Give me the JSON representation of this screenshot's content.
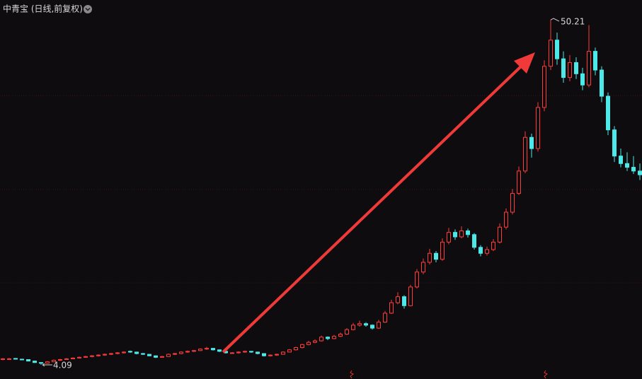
{
  "chart_data": {
    "type": "candlestick",
    "title": "中青宝 (日线,前复权)",
    "ylim": [
      2.2,
      52.86
    ],
    "up_color": "#ff3b3b",
    "down_color": "#4de8e8",
    "candles": [
      [
        4.8,
        5.0,
        4.7,
        4.9
      ],
      [
        4.9,
        5.0,
        4.8,
        4.9
      ],
      [
        4.95,
        5.0,
        4.8,
        4.85
      ],
      [
        4.85,
        4.9,
        4.7,
        4.8
      ],
      [
        4.8,
        4.85,
        4.55,
        4.6
      ],
      [
        4.6,
        4.65,
        4.35,
        4.4
      ],
      [
        4.4,
        4.45,
        4.09,
        4.3
      ],
      [
        4.3,
        4.6,
        4.25,
        4.5
      ],
      [
        4.5,
        4.8,
        4.45,
        4.7
      ],
      [
        4.7,
        4.9,
        4.6,
        4.8
      ],
      [
        4.8,
        5.0,
        4.75,
        4.9
      ],
      [
        4.9,
        5.1,
        4.85,
        5.0
      ],
      [
        5.0,
        5.2,
        4.95,
        5.1
      ],
      [
        5.1,
        5.3,
        5.05,
        5.2
      ],
      [
        5.2,
        5.4,
        5.1,
        5.3
      ],
      [
        5.3,
        5.5,
        5.2,
        5.4
      ],
      [
        5.4,
        5.6,
        5.3,
        5.5
      ],
      [
        5.5,
        5.7,
        5.4,
        5.6
      ],
      [
        5.6,
        5.8,
        5.5,
        5.7
      ],
      [
        5.7,
        5.9,
        5.6,
        5.8
      ],
      [
        5.9,
        6.0,
        5.7,
        5.8
      ],
      [
        5.8,
        5.85,
        5.5,
        5.6
      ],
      [
        5.6,
        5.7,
        5.4,
        5.5
      ],
      [
        5.5,
        5.55,
        5.25,
        5.3
      ],
      [
        5.3,
        5.35,
        5.0,
        5.1
      ],
      [
        5.1,
        5.3,
        5.05,
        5.2
      ],
      [
        5.2,
        5.6,
        5.15,
        5.5
      ],
      [
        5.5,
        5.7,
        5.4,
        5.6
      ],
      [
        5.6,
        5.9,
        5.5,
        5.8
      ],
      [
        5.8,
        6.0,
        5.7,
        5.9
      ],
      [
        5.9,
        6.1,
        5.8,
        6.0
      ],
      [
        6.0,
        6.3,
        5.95,
        6.2
      ],
      [
        6.2,
        6.5,
        6.1,
        6.3
      ],
      [
        6.3,
        6.35,
        6.0,
        6.1
      ],
      [
        6.1,
        6.15,
        5.8,
        5.9
      ],
      [
        5.9,
        6.0,
        5.6,
        5.7
      ],
      [
        5.7,
        5.8,
        5.6,
        5.7
      ],
      [
        5.7,
        5.9,
        5.6,
        5.8
      ],
      [
        5.8,
        6.0,
        5.7,
        5.9
      ],
      [
        5.9,
        5.95,
        5.7,
        5.8
      ],
      [
        5.8,
        5.85,
        5.5,
        5.6
      ],
      [
        5.6,
        5.65,
        5.2,
        5.3
      ],
      [
        5.3,
        5.5,
        5.2,
        5.4
      ],
      [
        5.4,
        5.6,
        5.3,
        5.5
      ],
      [
        5.5,
        5.9,
        5.45,
        5.8
      ],
      [
        5.8,
        6.2,
        5.75,
        6.1
      ],
      [
        6.1,
        6.5,
        6.0,
        6.4
      ],
      [
        6.4,
        6.9,
        6.3,
        6.8
      ],
      [
        6.8,
        7.3,
        6.7,
        7.1
      ],
      [
        7.1,
        7.5,
        7.0,
        7.3
      ],
      [
        7.3,
        8.0,
        7.2,
        7.8
      ],
      [
        7.8,
        7.9,
        7.4,
        7.6
      ],
      [
        7.6,
        8.1,
        7.5,
        7.9
      ],
      [
        7.9,
        8.4,
        7.8,
        8.2
      ],
      [
        8.2,
        9.0,
        8.1,
        8.8
      ],
      [
        8.8,
        9.7,
        8.7,
        9.4
      ],
      [
        9.4,
        10.0,
        9.2,
        9.6
      ],
      [
        9.6,
        9.8,
        9.2,
        9.4
      ],
      [
        9.4,
        9.5,
        8.8,
        9.0
      ],
      [
        9.0,
        10.1,
        8.9,
        9.8
      ],
      [
        9.8,
        11.3,
        9.7,
        11.0
      ],
      [
        11.0,
        12.8,
        10.9,
        12.4
      ],
      [
        12.4,
        13.8,
        12.2,
        13.2
      ],
      [
        13.2,
        13.4,
        11.6,
        12.0
      ],
      [
        12.0,
        14.8,
        11.9,
        14.5
      ],
      [
        14.5,
        16.9,
        14.3,
        16.5
      ],
      [
        16.5,
        18.3,
        16.2,
        17.8
      ],
      [
        17.8,
        19.6,
        17.5,
        19.0
      ],
      [
        19.0,
        19.3,
        17.8,
        18.2
      ],
      [
        18.2,
        21.0,
        18.0,
        20.5
      ],
      [
        20.5,
        22.4,
        20.2,
        21.8
      ],
      [
        21.8,
        22.2,
        20.8,
        21.2
      ],
      [
        21.2,
        22.6,
        21.0,
        22.0
      ],
      [
        22.0,
        22.3,
        21.1,
        21.5
      ],
      [
        21.5,
        21.7,
        19.5,
        19.8
      ],
      [
        19.8,
        20.1,
        18.6,
        19.0
      ],
      [
        19.0,
        19.9,
        18.7,
        19.5
      ],
      [
        19.5,
        20.9,
        19.3,
        20.5
      ],
      [
        20.5,
        23.0,
        20.3,
        22.5
      ],
      [
        22.5,
        25.0,
        22.2,
        24.5
      ],
      [
        24.5,
        27.6,
        24.2,
        27.0
      ],
      [
        27.0,
        30.6,
        26.8,
        30.0
      ],
      [
        30.0,
        35.3,
        29.7,
        34.5
      ],
      [
        34.5,
        35.0,
        31.8,
        33.0
      ],
      [
        33.0,
        39.2,
        32.6,
        38.5
      ],
      [
        38.5,
        44.8,
        38.0,
        44.0
      ],
      [
        44.0,
        50.21,
        43.5,
        47.5
      ],
      [
        47.5,
        48.5,
        44.2,
        45.0
      ],
      [
        45.0,
        46.0,
        41.8,
        42.5
      ],
      [
        42.5,
        45.5,
        42.0,
        44.5
      ],
      [
        44.5,
        45.2,
        42.3,
        43.0
      ],
      [
        43.0,
        43.8,
        40.8,
        41.5
      ],
      [
        41.5,
        49.5,
        41.2,
        46.0
      ],
      [
        46.0,
        46.5,
        42.8,
        43.5
      ],
      [
        43.5,
        44.0,
        39.2,
        40.0
      ],
      [
        40.0,
        40.5,
        34.8,
        35.5
      ],
      [
        35.5,
        36.0,
        31.2,
        32.0
      ],
      [
        32.0,
        33.0,
        30.5,
        31.0
      ],
      [
        31.0,
        32.5,
        30.0,
        30.5
      ],
      [
        30.5,
        32.0,
        29.6,
        30.0
      ],
      [
        30.0,
        31.0,
        28.8,
        29.5
      ]
    ]
  }
}
